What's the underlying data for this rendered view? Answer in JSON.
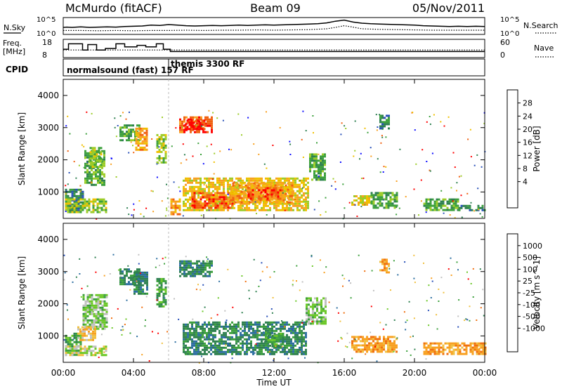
{
  "header": {
    "title": "McMurdo (fitACF)",
    "beam": "Beam 09",
    "date": "05/Nov/2011"
  },
  "chart_data": [
    {
      "id": "noise",
      "type": "line",
      "left_label": "N.Sky",
      "right_label": "N.Search",
      "left_ticks": [
        "10^5",
        "10^0"
      ],
      "right_ticks": [
        "10^5",
        "10^0"
      ],
      "x_range_hours": [
        0,
        24
      ],
      "series": [
        {
          "style": "solid",
          "x": [
            0,
            0.2,
            0.5,
            1.0,
            1.5,
            2.0,
            2.5,
            3.0,
            3.5,
            4.0,
            4.5,
            5.0,
            5.5,
            6.0,
            6.5,
            7.0,
            7.5,
            8.0,
            8.5,
            9.0,
            9.5,
            10,
            10.5,
            11,
            11.5,
            12,
            12.5,
            13,
            13.5,
            14,
            14.5,
            15,
            15.5,
            16,
            16.5,
            17,
            17.5,
            18,
            18.5,
            19,
            19.5,
            20,
            20.5,
            21,
            21.5,
            22,
            22.5,
            23,
            23.5,
            24
          ],
          "y": [
            2.0,
            2.1,
            2.0,
            2.2,
            2.0,
            2.1,
            2.2,
            2.1,
            2.3,
            2.4,
            2.5,
            2.8,
            2.7,
            3.0,
            2.8,
            2.6,
            2.5,
            2.6,
            2.7,
            2.6,
            2.7,
            2.8,
            2.7,
            2.8,
            2.9,
            2.8,
            2.9,
            3.0,
            3.1,
            3.2,
            3.3,
            3.6,
            4.2,
            4.6,
            3.9,
            3.5,
            3.3,
            3.2,
            3.1,
            3.0,
            2.9,
            2.8,
            2.6,
            2.5,
            2.4,
            2.3,
            2.4,
            2.3,
            2.4,
            2.3
          ]
        },
        {
          "style": "dotted",
          "x": [
            0,
            1,
            2,
            3,
            4,
            5,
            6,
            7,
            8,
            9,
            10,
            11,
            12,
            13,
            14,
            15,
            15.5,
            16,
            16.5,
            17,
            18,
            19,
            20,
            21,
            22,
            23,
            24
          ],
          "y": [
            0.9,
            0.9,
            0.8,
            0.9,
            0.8,
            0.9,
            0.9,
            1.0,
            0.9,
            1.0,
            1.0,
            1.1,
            1.0,
            1.1,
            1.2,
            1.5,
            2.0,
            2.6,
            2.1,
            1.5,
            1.3,
            1.2,
            1.1,
            1.0,
            1.0,
            1.0,
            1.0
          ]
        }
      ]
    },
    {
      "id": "freq",
      "type": "line",
      "left_label": [
        "Freq.",
        "[MHz]"
      ],
      "right_label": "Nave",
      "left_ticks": [
        "18",
        "8"
      ],
      "right_ticks": [
        "60",
        "0"
      ],
      "series": [
        {
          "style": "solid",
          "x": [
            0,
            0.3,
            0.3,
            1.1,
            1.1,
            1.4,
            1.4,
            1.9,
            1.9,
            2.4,
            2.4,
            3.0,
            3.0,
            3.5,
            3.5,
            4.2,
            4.2,
            4.7,
            4.7,
            5.3,
            5.3,
            5.7,
            5.7,
            6.1,
            6.1,
            24
          ],
          "y": [
            12.5,
            12.5,
            16,
            16,
            12,
            12,
            15.5,
            15.5,
            12,
            12,
            13,
            13,
            16,
            16,
            14,
            14,
            15,
            15,
            14,
            14,
            16,
            16,
            12.5,
            12.5,
            11,
            11
          ]
        },
        {
          "style": "dotted",
          "x": [
            0,
            24
          ],
          "y": [
            12,
            12
          ]
        }
      ]
    },
    {
      "id": "cpid",
      "type": "table",
      "label": "CPID",
      "entries": [
        {
          "text": "normalsound (fast) 157 RF",
          "start_hour": 0
        },
        {
          "text": "themis 3300 RF",
          "start_hour": 6
        }
      ]
    },
    {
      "id": "power",
      "type": "heatmap",
      "ylabel": "Slant Range [km]",
      "xlabel": "",
      "x_range_hours": [
        0,
        24
      ],
      "ylim": [
        180,
        4500
      ],
      "y_ticks": [
        "1000",
        "2000",
        "3000",
        "4000"
      ],
      "y_tick_values": [
        1000,
        2000,
        3000,
        4000
      ],
      "colorbar_label": "Power [dB]",
      "colorbar_ticks": [
        "4",
        "8",
        "12",
        "16",
        "20",
        "24",
        "28"
      ],
      "colorbar_colors": [
        "#1010ff",
        "#2850b8",
        "#2e8050",
        "#3ca03c",
        "#9ccc28",
        "#f0c000",
        "#f8a020",
        "#f06010",
        "#ff0000"
      ],
      "regions": [
        {
          "x": [
            0.1,
            1.1
          ],
          "y": [
            400,
            1100
          ],
          "v": 2
        },
        {
          "x": [
            0.1,
            2.5
          ],
          "y": [
            380,
            800
          ],
          "v": 4
        },
        {
          "x": [
            1.2,
            2.4
          ],
          "y": [
            1200,
            2300
          ],
          "v": 3
        },
        {
          "x": [
            1.5,
            2.2
          ],
          "y": [
            1800,
            2400
          ],
          "v": 4
        },
        {
          "x": [
            3.2,
            4.3
          ],
          "y": [
            2600,
            3100
          ],
          "v": 3
        },
        {
          "x": [
            4.1,
            4.8
          ],
          "y": [
            2300,
            3000
          ],
          "v": 6
        },
        {
          "x": [
            5.3,
            5.8
          ],
          "y": [
            1900,
            2800
          ],
          "v": 4
        },
        {
          "x": [
            6.1,
            6.6
          ],
          "y": [
            300,
            800
          ],
          "v": 6
        },
        {
          "x": [
            6.6,
            8.5
          ],
          "y": [
            2850,
            3350
          ],
          "v": 7
        },
        {
          "x": [
            6.9,
            8.0
          ],
          "y": [
            2950,
            3250
          ],
          "v": 8
        },
        {
          "x": [
            6.8,
            14.0
          ],
          "y": [
            450,
            1450
          ],
          "v": 5
        },
        {
          "x": [
            7.3,
            9.6
          ],
          "y": [
            500,
            1000
          ],
          "v": 7
        },
        {
          "x": [
            9.5,
            13.0
          ],
          "y": [
            700,
            1300
          ],
          "v": 6
        },
        {
          "x": [
            10.5,
            12.5
          ],
          "y": [
            800,
            1150
          ],
          "v": 7
        },
        {
          "x": [
            14.0,
            14.9
          ],
          "y": [
            1400,
            2200
          ],
          "v": 3
        },
        {
          "x": [
            16.4,
            17.5
          ],
          "y": [
            600,
            900
          ],
          "v": 5
        },
        {
          "x": [
            17.5,
            19.0
          ],
          "y": [
            500,
            1000
          ],
          "v": 3
        },
        {
          "x": [
            18.0,
            18.6
          ],
          "y": [
            3000,
            3400
          ],
          "v": 2
        },
        {
          "x": [
            20.5,
            22.5
          ],
          "y": [
            450,
            800
          ],
          "v": 3
        },
        {
          "x": [
            22.5,
            24.0
          ],
          "y": [
            420,
            600
          ],
          "v": 2
        }
      ]
    },
    {
      "id": "velocity",
      "type": "heatmap",
      "ylabel": "Slant Range [km]",
      "xlabel": "Time UT",
      "x_ticks": [
        "00:00",
        "04:00",
        "08:00",
        "12:00",
        "16:00",
        "20:00",
        "00:00"
      ],
      "x_tick_hours": [
        0,
        4,
        8,
        12,
        16,
        20,
        24
      ],
      "x_range_hours": [
        0,
        24
      ],
      "ylim": [
        180,
        4500
      ],
      "y_ticks": [
        "1000",
        "2000",
        "3000",
        "4000"
      ],
      "y_tick_values": [
        1000,
        2000,
        3000,
        4000
      ],
      "colorbar_label": "Velocity [m s^-1]",
      "colorbar_ticks": [
        "1000",
        "500",
        "100",
        "25",
        "-25",
        "-100",
        "-500",
        "-1000"
      ],
      "colorbar_colors": [
        "#2850b8",
        "#2c6ea0",
        "#2e8050",
        "#3ca03c",
        "#6cc828",
        "#c0c0c0",
        "#f0c040",
        "#f8a020",
        "#f07010",
        "#ff0000"
      ],
      "regions": [
        {
          "x": [
            0.1,
            1.0
          ],
          "y": [
            400,
            1100
          ],
          "v": 3
        },
        {
          "x": [
            0.1,
            2.5
          ],
          "y": [
            400,
            700
          ],
          "v": 5
        },
        {
          "x": [
            1.1,
            2.5
          ],
          "y": [
            1200,
            2300
          ],
          "v": 4
        },
        {
          "x": [
            3.2,
            4.3
          ],
          "y": [
            2600,
            3100
          ],
          "v": 2
        },
        {
          "x": [
            4.0,
            4.8
          ],
          "y": [
            2300,
            3000
          ],
          "v": 2
        },
        {
          "x": [
            5.3,
            5.8
          ],
          "y": [
            1900,
            2800
          ],
          "v": 3
        },
        {
          "x": [
            6.6,
            8.5
          ],
          "y": [
            2850,
            3350
          ],
          "v": 2
        },
        {
          "x": [
            6.8,
            13.8
          ],
          "y": [
            450,
            1450
          ],
          "v": 2
        },
        {
          "x": [
            11.5,
            12.5
          ],
          "y": [
            700,
            1100
          ],
          "v": 3
        },
        {
          "x": [
            13.8,
            14.9
          ],
          "y": [
            1400,
            2200
          ],
          "v": 4
        },
        {
          "x": [
            16.4,
            19.0
          ],
          "y": [
            500,
            1000
          ],
          "v": 7
        },
        {
          "x": [
            18.0,
            18.6
          ],
          "y": [
            3000,
            3400
          ],
          "v": 7
        },
        {
          "x": [
            20.5,
            24.0
          ],
          "y": [
            420,
            800
          ],
          "v": 7
        },
        {
          "x": [
            0.8,
            1.8
          ],
          "y": [
            900,
            1300
          ],
          "v": 6
        }
      ]
    }
  ]
}
